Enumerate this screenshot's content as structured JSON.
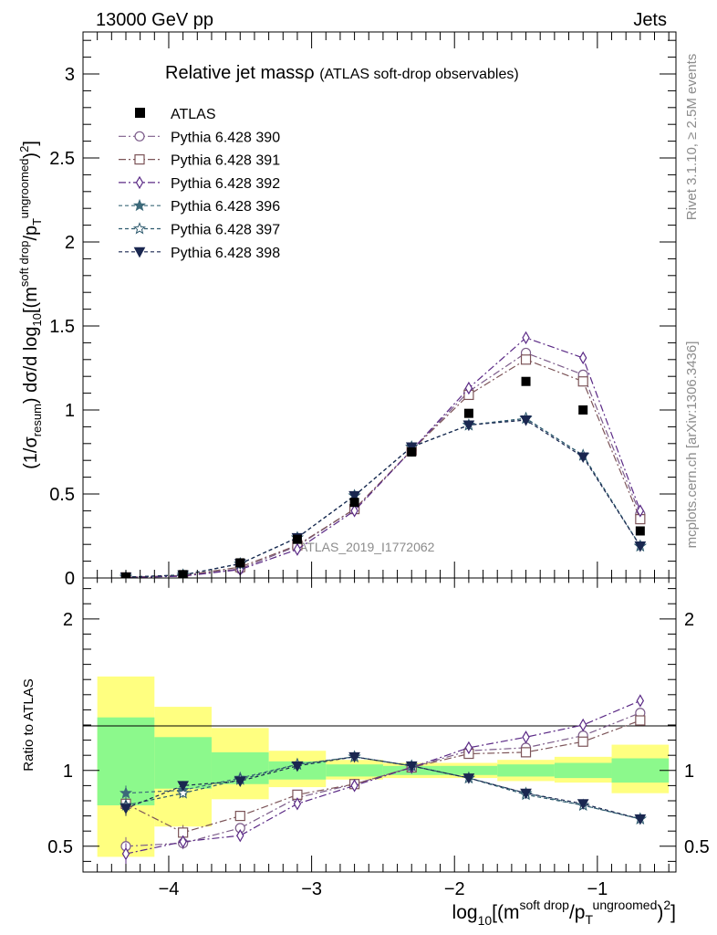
{
  "header": {
    "left": "13000 GeV pp",
    "right": "Jets"
  },
  "side": {
    "rivet": "Rivet 3.1.10, ≥ 2.5M events",
    "mcplots": "mcplots.cern.ch [arXiv:1306.3436]"
  },
  "chart_data": {
    "type": "line",
    "title": "Relative jet massρ",
    "subtitle": "(ATLAS soft-drop observables)",
    "watermark": "ATLAS_2019_I1772062",
    "ylabel_main": "(1/σresum) dσ/d log10[(msoft drop/pTungroomed)2]",
    "ylabel_main_parts": [
      "(1/σ",
      "resum",
      ") dσ/d log",
      "10",
      "[(m",
      "soft drop",
      "/p",
      "T",
      "ungroomed",
      ")",
      "2",
      "]"
    ],
    "ylabel_ratio": "Ratio to ATLAS",
    "xlabel": "log10[(msoft drop/pTungroomed)2]",
    "xlabel_parts": [
      "log",
      "10",
      "[(m",
      "soft drop",
      "/p",
      "T",
      "ungroomed",
      ")",
      "2",
      "]"
    ],
    "xlim": [
      -4.6,
      -0.45
    ],
    "ylim_main": [
      0,
      3.25
    ],
    "ylim_ratio": [
      0.33,
      2.27
    ],
    "xticks": [
      -4,
      -3,
      -2,
      -1
    ],
    "xtick_labels": [
      "−4",
      "−3",
      "−2",
      "−1"
    ],
    "yticks_main": [
      0,
      0.5,
      1,
      1.5,
      2,
      2.5,
      3
    ],
    "ytick_labels_main": [
      "0",
      "0.5",
      "1",
      "1.5",
      "2",
      "2.5",
      "3"
    ],
    "yticks_ratio": [
      0.5,
      1,
      2
    ],
    "ytick_labels_ratio": [
      "0.5",
      "1",
      "2"
    ],
    "x": [
      -4.3,
      -3.9,
      -3.5,
      -3.1,
      -2.7,
      -2.3,
      -1.9,
      -1.5,
      -1.1,
      -0.7
    ],
    "bin_edges": [
      -4.5,
      -4.1,
      -3.7,
      -3.3,
      -2.9,
      -2.5,
      -2.1,
      -1.7,
      -1.3,
      -0.9,
      -0.5
    ],
    "data": {
      "name": "ATLAS",
      "values": [
        0.005,
        0.02,
        0.09,
        0.23,
        0.45,
        0.75,
        0.98,
        1.17,
        1.0,
        0.28
      ],
      "band_inner": [
        [
          0.77,
          1.35
        ],
        [
          0.88,
          1.22
        ],
        [
          0.91,
          1.12
        ],
        [
          0.94,
          1.06
        ],
        [
          0.96,
          1.04
        ],
        [
          0.97,
          1.03
        ],
        [
          0.97,
          1.03
        ],
        [
          0.96,
          1.04
        ],
        [
          0.95,
          1.05
        ],
        [
          0.92,
          1.08
        ]
      ],
      "band_outer": [
        [
          0.43,
          1.62
        ],
        [
          0.63,
          1.42
        ],
        [
          0.81,
          1.28
        ],
        [
          0.89,
          1.13
        ],
        [
          0.94,
          1.07
        ],
        [
          0.95,
          1.05
        ],
        [
          0.95,
          1.05
        ],
        [
          0.93,
          1.07
        ],
        [
          0.92,
          1.09
        ],
        [
          0.85,
          1.17
        ]
      ]
    },
    "legend_position": "top-left",
    "series": [
      {
        "name": "Pythia 6.428 390",
        "color": "#7c5c8a",
        "marker": "circle-open",
        "dash": "8,3,2,3",
        "values": [
          0.003,
          0.012,
          0.055,
          0.19,
          0.41,
          0.76,
          1.11,
          1.34,
          1.21,
          0.38
        ],
        "ratio": [
          0.5,
          0.52,
          0.62,
          0.82,
          0.91,
          1.02,
          1.13,
          1.15,
          1.23,
          1.38
        ],
        "ratio_err": [
          0.06,
          0.04,
          0.02,
          0.01,
          0.01,
          0.01,
          0.01,
          0.01,
          0.01,
          0.01
        ]
      },
      {
        "name": "Pythia 6.428 391",
        "color": "#7c5458",
        "marker": "square-open",
        "dash": "8,3,2,3",
        "values": [
          0.004,
          0.015,
          0.065,
          0.195,
          0.41,
          0.76,
          1.09,
          1.3,
          1.17,
          0.35
        ],
        "ratio": [
          0.78,
          0.59,
          0.7,
          0.84,
          0.91,
          1.02,
          1.11,
          1.12,
          1.19,
          1.33
        ],
        "ratio_err": [
          0.05,
          0.05,
          0.02,
          0.01,
          0.01,
          0.01,
          0.01,
          0.01,
          0.01,
          0.01
        ]
      },
      {
        "name": "Pythia 6.428 392",
        "color": "#5b2a86",
        "marker": "diamond-open",
        "dash": "8,3,2,3",
        "values": [
          0.002,
          0.011,
          0.05,
          0.17,
          0.4,
          0.76,
          1.13,
          1.43,
          1.31,
          0.4
        ],
        "ratio": [
          0.45,
          0.53,
          0.57,
          0.78,
          0.9,
          1.02,
          1.15,
          1.22,
          1.3,
          1.46
        ],
        "ratio_err": [
          0.07,
          0.04,
          0.02,
          0.01,
          0.01,
          0.01,
          0.01,
          0.01,
          0.01,
          0.01
        ]
      },
      {
        "name": "Pythia 6.428 396",
        "color": "#3d6a7a",
        "marker": "star-filled",
        "dash": "4,3",
        "values": [
          0.005,
          0.018,
          0.085,
          0.24,
          0.49,
          0.78,
          0.91,
          0.95,
          0.73,
          0.19
        ],
        "ratio": [
          0.85,
          0.87,
          0.95,
          1.04,
          1.09,
          1.03,
          0.95,
          0.85,
          0.77,
          0.68
        ],
        "ratio_err": [
          0.05,
          0.03,
          0.02,
          0.01,
          0.01,
          0.01,
          0.01,
          0.01,
          0.01,
          0.01
        ]
      },
      {
        "name": "Pythia 6.428 397",
        "color": "#2e5a6e",
        "marker": "star-open",
        "dash": "4,3",
        "values": [
          0.005,
          0.017,
          0.085,
          0.24,
          0.49,
          0.78,
          0.91,
          0.95,
          0.73,
          0.19
        ],
        "ratio": [
          0.77,
          0.85,
          0.94,
          1.04,
          1.09,
          1.03,
          0.95,
          0.84,
          0.77,
          0.68
        ],
        "ratio_err": [
          0.05,
          0.03,
          0.02,
          0.01,
          0.01,
          0.01,
          0.01,
          0.01,
          0.01,
          0.01
        ]
      },
      {
        "name": "Pythia 6.428 398",
        "color": "#1a2750",
        "marker": "triangle-down-filled",
        "dash": "4,3",
        "values": [
          0.005,
          0.018,
          0.085,
          0.24,
          0.49,
          0.78,
          0.91,
          0.94,
          0.72,
          0.19
        ],
        "ratio": [
          0.75,
          0.9,
          0.93,
          1.03,
          1.09,
          1.03,
          0.95,
          0.85,
          0.78,
          0.68
        ],
        "ratio_err": [
          0.05,
          0.03,
          0.02,
          0.01,
          0.01,
          0.01,
          0.01,
          0.01,
          0.01,
          0.01
        ]
      }
    ]
  }
}
